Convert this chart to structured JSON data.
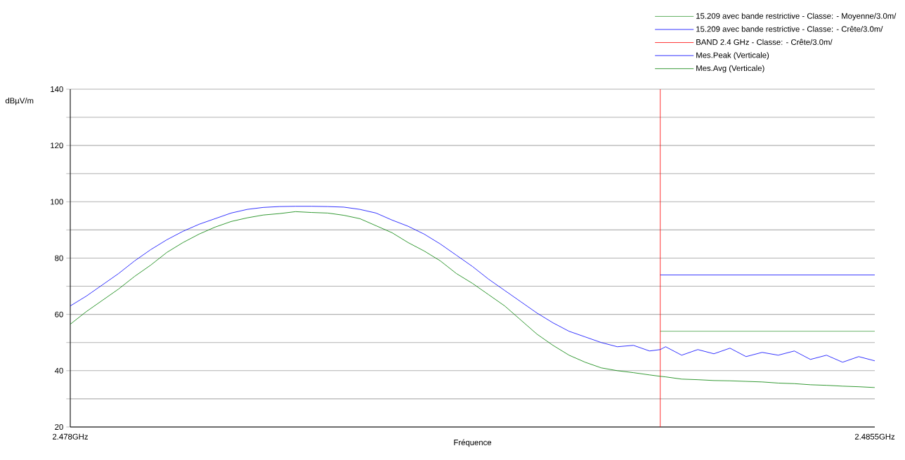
{
  "chart_data": {
    "type": "line",
    "xlabel": "Fréquence",
    "ylabel": "dBµV/m",
    "xlim": [
      2.478,
      2.4855
    ],
    "ylim": [
      20,
      140
    ],
    "xticks": [
      {
        "value": 2.478,
        "label": "2.478GHz"
      },
      {
        "value": 2.4855,
        "label": "2.4855GHz"
      }
    ],
    "yticks": [
      20,
      {
        "value": 30,
        "label": null
      },
      40,
      {
        "value": 50,
        "label": null
      },
      60,
      {
        "value": 70,
        "label": null
      },
      80,
      {
        "value": 90,
        "label": null
      },
      100,
      {
        "value": 110,
        "label": null
      },
      120,
      {
        "value": 130,
        "label": null
      },
      140
    ],
    "grid": "y",
    "legend": "top right",
    "marker": "none",
    "x": [
      2.478,
      2.47815,
      2.4783,
      2.47845,
      2.4786,
      2.47875,
      2.4789,
      2.47905,
      2.4792,
      2.47935,
      2.4795,
      2.47965,
      2.4798,
      2.47995,
      2.4801,
      2.48025,
      2.4804,
      2.48055,
      2.4807,
      2.48085,
      2.481,
      2.48115,
      2.4813,
      2.48145,
      2.4816,
      2.48175,
      2.4819,
      2.48205,
      2.4822,
      2.48235,
      2.4825,
      2.48265,
      2.4828,
      2.48295,
      2.4831,
      2.48325,
      2.4834,
      2.4835,
      2.48355,
      2.4837,
      2.48385,
      2.484,
      2.48415,
      2.4843,
      2.48445,
      2.4846,
      2.48475,
      2.4849,
      2.48505,
      2.4852,
      2.48535,
      2.4855
    ],
    "ref_lines": [
      {
        "axis": "x",
        "value": 2.4835,
        "label": "BAND 2.4 GHz - Classe: - Crête/3.0m/",
        "color": "#ff0000"
      }
    ],
    "series": [
      {
        "name": "15.209 avec bande restrictive - Classe: - Moyenne/3.0m/",
        "color": "#339933",
        "values": [
          null,
          null,
          null,
          null,
          null,
          null,
          null,
          null,
          null,
          null,
          null,
          null,
          null,
          null,
          null,
          null,
          null,
          null,
          null,
          null,
          null,
          null,
          null,
          null,
          null,
          null,
          null,
          null,
          null,
          null,
          null,
          null,
          null,
          null,
          null,
          null,
          null,
          54,
          54,
          54,
          54,
          54,
          54,
          54,
          54,
          54,
          54,
          54,
          54,
          54,
          54,
          54
        ]
      },
      {
        "name": "15.209 avec bande restrictive - Classe: - Crête/3.0m/",
        "color": "#0000ff",
        "values": [
          null,
          null,
          null,
          null,
          null,
          null,
          null,
          null,
          null,
          null,
          null,
          null,
          null,
          null,
          null,
          null,
          null,
          null,
          null,
          null,
          null,
          null,
          null,
          null,
          null,
          null,
          null,
          null,
          null,
          null,
          null,
          null,
          null,
          null,
          null,
          null,
          null,
          74,
          74,
          74,
          74,
          74,
          74,
          74,
          74,
          74,
          74,
          74,
          74,
          74,
          74,
          74
        ]
      },
      {
        "name": "Mes.Peak (Verticale)",
        "color": "#0000ff",
        "values": [
          63,
          66.5,
          70.5,
          74.5,
          79,
          83,
          86.5,
          89.5,
          92,
          94,
          96,
          97.3,
          98,
          98.3,
          98.4,
          98.4,
          98.3,
          98.1,
          97.3,
          96,
          93.5,
          91.3,
          88.5,
          85,
          81,
          77,
          72.5,
          68.5,
          64.5,
          60.5,
          57,
          54,
          52,
          50,
          48.5,
          49,
          47,
          47.5,
          48.5,
          45.5,
          47.5,
          46,
          48,
          45,
          46.5,
          45.5,
          47,
          44,
          45.5,
          43,
          45,
          43.5
        ]
      },
      {
        "name": "Mes.Avg (Verticale)",
        "color": "#008000",
        "values": [
          56.5,
          61,
          65,
          69,
          73.5,
          77.5,
          82,
          85.5,
          88.5,
          91,
          93,
          94.3,
          95.3,
          95.8,
          96.5,
          96.2,
          96,
          95.2,
          94,
          91.5,
          89,
          85.5,
          82.5,
          79,
          74.5,
          71,
          67,
          63,
          58,
          53,
          49,
          45.5,
          43,
          41,
          40,
          39.3,
          38.5,
          38,
          37.8,
          37,
          36.8,
          36.5,
          36.4,
          36.2,
          36,
          35.6,
          35.4,
          35,
          34.8,
          34.5,
          34.3,
          34
        ]
      }
    ]
  }
}
